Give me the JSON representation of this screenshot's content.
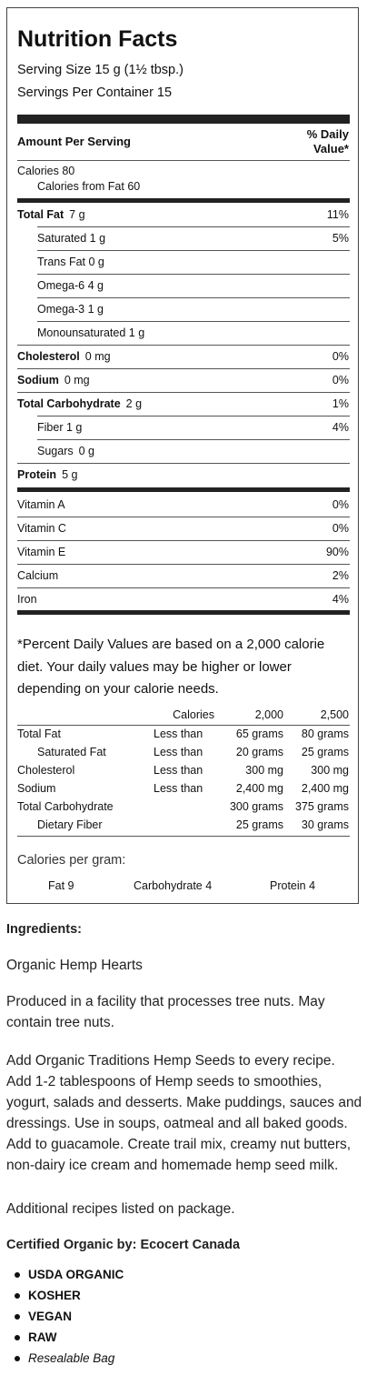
{
  "panel": {
    "title": "Nutrition Facts",
    "serving_size": "Serving Size 15 g (1½ tbsp.)",
    "servings_per_container": "Servings Per Container 15",
    "amount_per_serving": "Amount Per Serving",
    "daily_value_header_1": "% Daily",
    "daily_value_header_2": "Value*",
    "calories": "Calories 80",
    "calories_from_fat": "Calories from Fat 60",
    "nutrients": [
      {
        "label": "Total Fat",
        "amount": "7 g",
        "dv": "11%"
      },
      {
        "label": "Saturated 1 g",
        "amount": "",
        "dv": "5%"
      },
      {
        "label": "Trans Fat 0 g",
        "amount": "",
        "dv": ""
      },
      {
        "label": "Omega-6 4 g",
        "amount": "",
        "dv": ""
      },
      {
        "label": "Omega-3 1 g",
        "amount": "",
        "dv": ""
      },
      {
        "label": "Monounsaturated 1 g",
        "amount": "",
        "dv": ""
      },
      {
        "label": "Cholesterol",
        "amount": "0 mg",
        "dv": "0%"
      },
      {
        "label": "Sodium",
        "amount": "0 mg",
        "dv": "0%"
      },
      {
        "label": "Total Carbohydrate",
        "amount": "2 g",
        "dv": "1%"
      },
      {
        "label": "Fiber 1 g",
        "amount": "",
        "dv": "4%"
      },
      {
        "label": "Sugars",
        "amount": "0 g",
        "dv": ""
      },
      {
        "label": "Protein",
        "amount": "5 g",
        "dv": ""
      }
    ],
    "vitamins": [
      {
        "label": "Vitamin A",
        "dv": "0%"
      },
      {
        "label": "Vitamin C",
        "dv": "0%"
      },
      {
        "label": "Vitamin E",
        "dv": "90%"
      },
      {
        "label": "Calcium",
        "dv": "2%"
      },
      {
        "label": "Iron",
        "dv": "4%"
      }
    ],
    "footnote": "*Percent Daily Values are based on a 2,000 calorie diet. Your daily values may be higher or lower depending on your calorie needs.",
    "footnote_lines": [
      "*Percent Daily Values are based on a 2,000 calorie",
      "diet. Your daily values may be higher or lower",
      "depending on your calorie needs."
    ],
    "dv_table": {
      "headers": [
        "Calories",
        "2,000",
        "2,500"
      ],
      "rows": [
        {
          "label": "Total Fat",
          "limit": "Less than",
          "v2000": "65 grams",
          "v2500": "80 grams"
        },
        {
          "label": "Saturated Fat",
          "limit": "Less than",
          "v2000": "20 grams",
          "v2500": "25 grams"
        },
        {
          "label": "Cholesterol",
          "limit": "Less than",
          "v2000": "300 mg",
          "v2500": "300 mg"
        },
        {
          "label": "Sodium",
          "limit": "Less than",
          "v2000": "2,400 mg",
          "v2500": "2,400 mg"
        },
        {
          "label": "Total Carbohydrate",
          "limit": "",
          "v2000": "300 grams",
          "v2500": "375 grams"
        },
        {
          "label": "Dietary Fiber",
          "limit": "",
          "v2000": "25 grams",
          "v2500": "30 grams"
        }
      ]
    },
    "calories_per_gram": "Calories per gram:",
    "cpg": [
      "Fat 9",
      "Carbohydrate 4",
      "Protein 4"
    ]
  },
  "details": {
    "ingredients_heading": "Ingredients:",
    "ingredients": "Organic Hemp Hearts",
    "allergen_lines": [
      "Produced in a facility that processes tree nuts. May",
      "contain tree nuts."
    ],
    "usage_lines": [
      "Add Organic Traditions Hemp Seeds to every recipe.",
      "Add 1-2 tablespoons of Hemp seeds to smoothies,",
      "yogurt, salads and desserts. Make puddings, sauces and",
      "dressings. Use in soups, oatmeal and all baked goods.",
      "Add to guacamole. Create trail mix, creamy nut butters,",
      "non-dairy ice cream and homemade hemp seed milk."
    ],
    "additional": "Additional recipes listed on package.",
    "certified": "Certified Organic by: Ecocert Canada",
    "badges": [
      "USDA ORGANIC",
      "KOSHER",
      "VEGAN",
      "RAW",
      "Resealable Bag"
    ]
  }
}
